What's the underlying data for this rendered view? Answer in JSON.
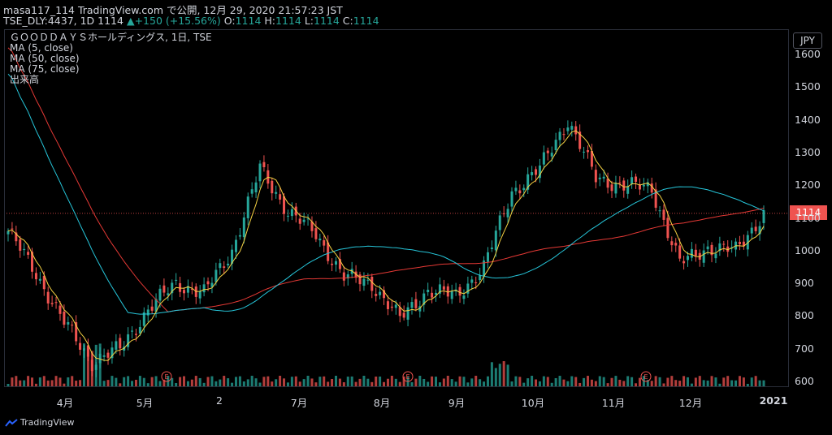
{
  "header": {
    "line1": "masa117_114 TradingView.com で公開, 12月 29, 2020 21:57:23 JST",
    "symbol": "TSE_DLY:4437, 1D 1114",
    "change": "▲+150 (+15.56%)",
    "o_label": "O:",
    "o": "1114",
    "h_label": "H:",
    "h": "1114",
    "l_label": "L:",
    "l": "1114",
    "c_label": "C:",
    "c": "1114"
  },
  "legend": {
    "title": "ＧＯＯＤＤＡＹＳホールディングス, 1日, TSE",
    "ma1": "MA (5, close)",
    "ma2": "MA (50, close)",
    "ma3": "MA (75, close)",
    "volume": "出来高"
  },
  "axis": {
    "unit": "JPY",
    "last_price": "1114",
    "y_ticks": [
      "1600",
      "1500",
      "1400",
      "1300",
      "1200",
      "1100",
      "1000",
      "900",
      "800",
      "700",
      "600"
    ],
    "x_ticks": [
      "4月",
      "5月",
      "2",
      "7月",
      "8月",
      "9月",
      "10月",
      "11月",
      "12月",
      "2021"
    ]
  },
  "brand": {
    "name": "TradingView"
  },
  "colors": {
    "up": "#26a69a",
    "down": "#ef5350",
    "ma5": "#f5d142",
    "ma50": "#26c6da",
    "ma75": "#e53935",
    "background": "#000000"
  },
  "chart_data": {
    "type": "candlestick",
    "title": "ＧＯＯＤＤＡＹＳホールディングス, 1日, TSE",
    "ylabel": "JPY",
    "ylim": [
      600,
      1650
    ],
    "last_price": 1114,
    "x_ticks": [
      "4月",
      "5月",
      "2",
      "7月",
      "8月",
      "9月",
      "10月",
      "11月",
      "12月",
      "2021"
    ],
    "close_approx": [
      {
        "date": "2020-03",
        "close": 1060
      },
      {
        "date": "2020-03-15",
        "close": 930
      },
      {
        "date": "2020-04-01",
        "close": 780
      },
      {
        "date": "2020-04-10",
        "close": 660
      },
      {
        "date": "2020-04-20",
        "close": 700
      },
      {
        "date": "2020-05-01",
        "close": 820
      },
      {
        "date": "2020-05-15",
        "close": 900
      },
      {
        "date": "2020-05-25",
        "close": 870
      },
      {
        "date": "2020-06-02",
        "close": 1000
      },
      {
        "date": "2020-06-10",
        "close": 1250
      },
      {
        "date": "2020-06-20",
        "close": 1120
      },
      {
        "date": "2020-06-30",
        "close": 1050
      },
      {
        "date": "2020-07-10",
        "close": 920
      },
      {
        "date": "2020-07-25",
        "close": 900
      },
      {
        "date": "2020-08-05",
        "close": 790
      },
      {
        "date": "2020-08-20",
        "close": 880
      },
      {
        "date": "2020-09-05",
        "close": 860
      },
      {
        "date": "2020-09-20",
        "close": 950
      },
      {
        "date": "2020-10-01",
        "close": 1180
      },
      {
        "date": "2020-10-10",
        "close": 1250
      },
      {
        "date": "2020-10-15",
        "close": 1400
      },
      {
        "date": "2020-10-25",
        "close": 1220
      },
      {
        "date": "2020-11-05",
        "close": 1200
      },
      {
        "date": "2020-11-15",
        "close": 1190
      },
      {
        "date": "2020-11-22",
        "close": 960
      },
      {
        "date": "2020-12-01",
        "close": 1010
      },
      {
        "date": "2020-12-15",
        "close": 1000
      },
      {
        "date": "2020-12-29",
        "close": 1114
      }
    ],
    "series": [
      {
        "name": "MA (5, close)",
        "color": "#f5d142"
      },
      {
        "name": "MA (50, close)",
        "color": "#26c6da"
      },
      {
        "name": "MA (75, close)",
        "color": "#e53935"
      }
    ]
  }
}
